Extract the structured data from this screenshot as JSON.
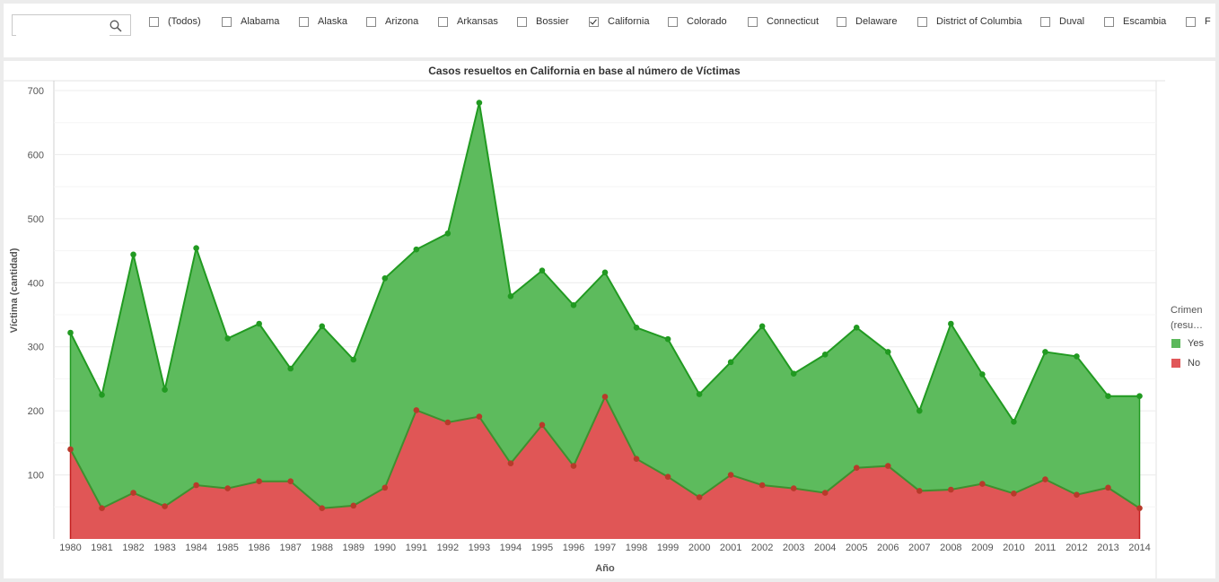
{
  "filters": {
    "search": {
      "value": "",
      "placeholder": ""
    },
    "options": [
      {
        "label": "(Todos)",
        "checked": false
      },
      {
        "label": "Alabama",
        "checked": false
      },
      {
        "label": "Alaska",
        "checked": false
      },
      {
        "label": "Arizona",
        "checked": false
      },
      {
        "label": "Arkansas",
        "checked": false
      },
      {
        "label": "Bossier",
        "checked": false
      },
      {
        "label": "California",
        "checked": true
      },
      {
        "label": "Colorado",
        "checked": false
      },
      {
        "label": "Connecticut",
        "checked": false
      },
      {
        "label": "Delaware",
        "checked": false
      },
      {
        "label": "District of Columbia",
        "checked": false
      },
      {
        "label": "Duval",
        "checked": false
      },
      {
        "label": "Escambia",
        "checked": false
      },
      {
        "label": "F",
        "checked": false
      }
    ]
  },
  "legend": {
    "title_line1": "Crimen",
    "title_line2": "(resu…",
    "items": [
      {
        "label": "Yes",
        "color": "#5cb85c"
      },
      {
        "label": "No",
        "color": "#e15759"
      }
    ]
  },
  "colors": {
    "yes_fill": "#5dbb5d",
    "yes_line": "#219a21",
    "no_fill": "#e05656",
    "no_line": "#c42020"
  },
  "chart_data": {
    "type": "area",
    "stacked": true,
    "title": "Casos resueltos en California en base al número de Víctimas",
    "xlabel": "Año",
    "ylabel": "Víctima (cantidad)",
    "ylim": [
      0,
      700
    ],
    "yticks": [
      100,
      200,
      300,
      400,
      500,
      600,
      700
    ],
    "grid": true,
    "legend_position": "right",
    "x": [
      1980,
      1981,
      1982,
      1983,
      1984,
      1985,
      1986,
      1987,
      1988,
      1989,
      1990,
      1991,
      1992,
      1993,
      1994,
      1995,
      1996,
      1997,
      1998,
      1999,
      2000,
      2001,
      2002,
      2003,
      2004,
      2005,
      2006,
      2007,
      2008,
      2009,
      2010,
      2011,
      2012,
      2013,
      2014
    ],
    "series": [
      {
        "name": "No",
        "values": [
          140,
          48,
          72,
          51,
          84,
          79,
          90,
          90,
          48,
          52,
          80,
          201,
          182,
          191,
          118,
          178,
          114,
          222,
          125,
          97,
          65,
          100,
          84,
          79,
          72,
          111,
          114,
          75,
          77,
          86,
          71,
          93,
          69,
          80,
          48
        ]
      },
      {
        "name": "Yes",
        "values": [
          182,
          177,
          372,
          182,
          370,
          234,
          246,
          176,
          284,
          228,
          327,
          251,
          295,
          490,
          261,
          241,
          251,
          194,
          205,
          215,
          161,
          176,
          248,
          179,
          216,
          219,
          178,
          125,
          259,
          171,
          112,
          199,
          216,
          143,
          175
        ]
      }
    ],
    "stack_totals": [
      322,
      225,
      444,
      233,
      454,
      313,
      336,
      266,
      332,
      280,
      407,
      452,
      477,
      681,
      379,
      419,
      365,
      416,
      330,
      312,
      226,
      276,
      332,
      258,
      288,
      330,
      292,
      200,
      336,
      257,
      183,
      292,
      285,
      223,
      223
    ]
  }
}
